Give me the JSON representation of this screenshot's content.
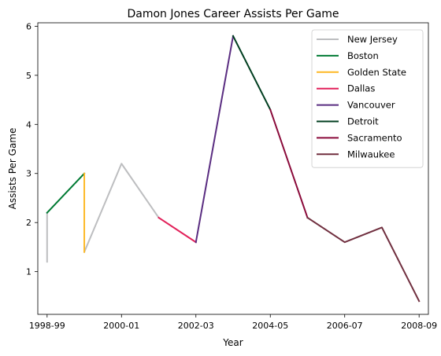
{
  "chart_data": {
    "type": "line",
    "title": "Damon Jones Career Assists Per Game",
    "xlabel": "Year",
    "ylabel": "Assists Per Game",
    "xlim": [
      1998.75,
      2009.25
    ],
    "ylim": [
      0.13,
      6.07
    ],
    "xticks": [
      {
        "value": 1999,
        "label": "1998-99"
      },
      {
        "value": 2001,
        "label": "2000-01"
      },
      {
        "value": 2003,
        "label": "2002-03"
      },
      {
        "value": 2005,
        "label": "2004-05"
      },
      {
        "value": 2007,
        "label": "2006-07"
      },
      {
        "value": 2009,
        "label": "2008-09"
      }
    ],
    "yticks": [
      1,
      2,
      3,
      4,
      5,
      6
    ],
    "grid": false,
    "legend_position": "top-right",
    "series": [
      {
        "name": "New Jersey",
        "color": "#BDBEC0",
        "segments": [
          [
            [
              1999,
              1.2
            ],
            [
              1999,
              2.2
            ]
          ],
          [
            [
              2000,
              1.4
            ],
            [
              2001,
              3.2
            ],
            [
              2002,
              2.1
            ]
          ]
        ]
      },
      {
        "name": "Boston",
        "color": "#007A33",
        "segments": [
          [
            [
              1999,
              2.2
            ],
            [
              2000,
              3.0
            ]
          ]
        ]
      },
      {
        "name": "Golden State",
        "color": "#FDB927",
        "segments": [
          [
            [
              2000,
              3.0
            ],
            [
              2000,
              1.4
            ]
          ]
        ]
      },
      {
        "name": "Dallas",
        "color": "#E2215A",
        "segments": [
          [
            [
              2002,
              2.1
            ],
            [
              2003,
              1.6
            ]
          ]
        ]
      },
      {
        "name": "Vancouver",
        "color": "#5A2D81",
        "segments": [
          [
            [
              2003,
              1.6
            ],
            [
              2004,
              5.8
            ]
          ]
        ]
      },
      {
        "name": "Detroit",
        "color": "#003E1F",
        "segments": [
          [
            [
              2004,
              5.8
            ],
            [
              2005,
              4.3
            ]
          ]
        ]
      },
      {
        "name": "Sacramento",
        "color": "#8A0A3A",
        "segments": [
          [
            [
              2005,
              4.3
            ],
            [
              2006,
              2.1
            ]
          ]
        ]
      },
      {
        "name": "Milwaukee",
        "color": "#702F3F",
        "segments": [
          [
            [
              2006,
              2.1
            ],
            [
              2007,
              1.6
            ],
            [
              2008,
              1.9
            ],
            [
              2009,
              0.4
            ]
          ]
        ]
      }
    ]
  }
}
